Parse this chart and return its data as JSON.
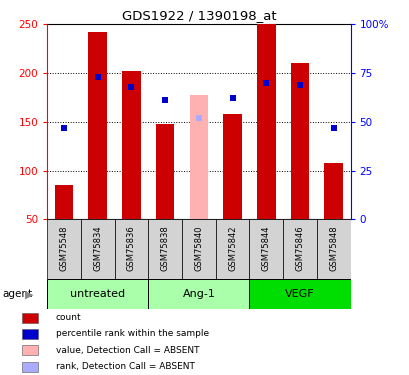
{
  "title": "GDS1922 / 1390198_at",
  "samples": [
    "GSM75548",
    "GSM75834",
    "GSM75836",
    "GSM75838",
    "GSM75840",
    "GSM75842",
    "GSM75844",
    "GSM75846",
    "GSM75848"
  ],
  "count_values": [
    85,
    242,
    202,
    148,
    null,
    158,
    250,
    210,
    108
  ],
  "count_absent": [
    null,
    null,
    null,
    null,
    178,
    null,
    null,
    null,
    null
  ],
  "percentile_values_pct": [
    47,
    73,
    68,
    61,
    null,
    62,
    70,
    69,
    47
  ],
  "percentile_absent_pct": [
    null,
    null,
    null,
    null,
    52,
    null,
    null,
    null,
    null
  ],
  "groups": [
    {
      "label": "untreated",
      "start": 0,
      "end": 3
    },
    {
      "label": "Ang-1",
      "start": 3,
      "end": 6
    },
    {
      "label": "VEGF",
      "start": 6,
      "end": 9
    }
  ],
  "group_colors": [
    "#aaffaa",
    "#aaffaa",
    "#00ee00"
  ],
  "agent_label": "agent",
  "ylim_left": [
    50,
    250
  ],
  "ylim_right": [
    0,
    100
  ],
  "yticks_left": [
    50,
    100,
    150,
    200,
    250
  ],
  "yticks_right": [
    0,
    25,
    50,
    75,
    100
  ],
  "yticklabels_right": [
    "0",
    "25",
    "50",
    "75",
    "100%"
  ],
  "bar_color_red": "#cc0000",
  "bar_color_pink": "#ffb0b0",
  "dot_color_blue": "#0000cc",
  "dot_color_lightblue": "#aaaaff",
  "bar_width": 0.55,
  "legend_items": [
    {
      "color": "#cc0000",
      "label": "count"
    },
    {
      "color": "#0000cc",
      "label": "percentile rank within the sample"
    },
    {
      "color": "#ffb0b0",
      "label": "value, Detection Call = ABSENT"
    },
    {
      "color": "#aaaaff",
      "label": "rank, Detection Call = ABSENT"
    }
  ]
}
